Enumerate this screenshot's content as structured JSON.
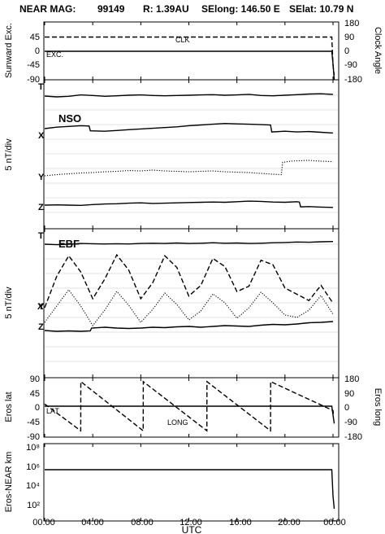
{
  "title": {
    "mission": "NEAR MAG:",
    "doy": "99149",
    "range": "R: 1.39AU",
    "selong": "SElong:  146.50 E",
    "selat": "SElat:   10.79 N"
  },
  "chart_data": [
    {
      "id": "panel1",
      "type": "line",
      "ylabel_left": "Sunward Exc.",
      "ylabel_right": "Clock Angle",
      "yticks_left": [
        "45",
        "0",
        "-45",
        "-90"
      ],
      "yticks_right": [
        "180",
        "90",
        "0",
        "-90",
        "-180"
      ],
      "ylim_left": [
        -90,
        90
      ],
      "ylim_right": [
        -180,
        180
      ],
      "annotations": [
        "CLK",
        "EXC."
      ],
      "series": [
        {
          "name": "CLK",
          "style": "dashed",
          "axis": "right",
          "x": [
            0,
            23.9,
            24.0,
            24.1
          ],
          "y": [
            90,
            90,
            -90,
            -150
          ]
        },
        {
          "name": "EXC.",
          "style": "solid",
          "axis": "left",
          "x": [
            0,
            23.9,
            24.0,
            24.1
          ],
          "y": [
            0,
            0,
            -40,
            -90
          ]
        }
      ]
    },
    {
      "id": "panel2",
      "type": "line",
      "ylabel_left": "5 nT/div",
      "panel_label": "NSO",
      "trace_labels": [
        "T",
        "X",
        "Y",
        "Z"
      ],
      "series": [
        {
          "name": "T",
          "style": "solid",
          "x": [
            0,
            1,
            2,
            3,
            4,
            5,
            6,
            7,
            8,
            9,
            10,
            11,
            12,
            13,
            14,
            15,
            16,
            17,
            18,
            19,
            20,
            21,
            22,
            23,
            24
          ],
          "y": [
            0,
            -0.3,
            -0.1,
            0.4,
            0.2,
            -0.1,
            0.1,
            0.3,
            0.4,
            0.2,
            0.1,
            0.2,
            0.3,
            0.4,
            0.5,
            0.3,
            0.4,
            0.6,
            0.2,
            0.1,
            0.3,
            0.5,
            0.7,
            0.8,
            0.6
          ]
        },
        {
          "name": "X",
          "style": "solid",
          "x": [
            0,
            1,
            2,
            3,
            3.7,
            3.8,
            5,
            6,
            7,
            8,
            9,
            10,
            11,
            12,
            13,
            14,
            15,
            16,
            17,
            18,
            18.8,
            18.9,
            20,
            21,
            22,
            23,
            24
          ],
          "y": [
            0,
            0.4,
            0.6,
            0.8,
            0.7,
            -0.6,
            -0.7,
            -0.5,
            -0.3,
            -0.1,
            0.1,
            0.3,
            0.5,
            0.8,
            1.0,
            1.2,
            1.4,
            1.3,
            1.2,
            1.1,
            1.0,
            -0.9,
            -0.7,
            -0.9,
            -0.8,
            -1.0,
            -1.2
          ]
        },
        {
          "name": "Y",
          "style": "dotted",
          "x": [
            0,
            1,
            2,
            3,
            4,
            5,
            6,
            7,
            8,
            9,
            10,
            11,
            12,
            13,
            14,
            15,
            16,
            17,
            18,
            19,
            19.7,
            19.8,
            20.5,
            21,
            22,
            23,
            24
          ],
          "y": [
            0,
            0.3,
            0.5,
            0.7,
            0.8,
            1.0,
            1.1,
            1.3,
            1.2,
            1.4,
            1.2,
            1.1,
            1.0,
            1.1,
            1.2,
            1.0,
            0.9,
            0.8,
            0.6,
            0.4,
            0.3,
            3.3,
            3.6,
            3.7,
            3.8,
            3.6,
            3.5
          ]
        },
        {
          "name": "Z",
          "style": "solid",
          "x": [
            0,
            1,
            2,
            3,
            4,
            5,
            6,
            7,
            8,
            9,
            10,
            11,
            12,
            13,
            14,
            15,
            16,
            17,
            18,
            19,
            20,
            21,
            21.2,
            21.3,
            22,
            23,
            24
          ],
          "y": [
            0,
            0.1,
            0.0,
            -0.1,
            0.2,
            0.4,
            0.5,
            0.7,
            0.8,
            0.6,
            0.7,
            0.8,
            0.9,
            1.0,
            1.1,
            1.0,
            1.2,
            1.4,
            1.3,
            1.1,
            1.0,
            1.2,
            1.1,
            -0.6,
            -0.5,
            -0.7,
            -0.8
          ]
        }
      ]
    },
    {
      "id": "panel3",
      "type": "line",
      "ylabel_left": "5 nT/div",
      "panel_label": "EBF",
      "trace_labels": [
        "T",
        "X",
        "Y",
        "Z"
      ],
      "series": [
        {
          "name": "T",
          "style": "solid",
          "x": [
            0,
            1,
            2,
            3,
            4,
            5,
            6,
            7,
            8,
            9,
            10,
            11,
            12,
            13,
            14,
            15,
            16,
            17,
            18,
            19,
            20,
            21,
            22,
            23,
            24
          ],
          "y": [
            0,
            -0.2,
            0.0,
            0.3,
            0.2,
            0.1,
            0.2,
            0.1,
            0.3,
            0.4,
            0.3,
            0.5,
            0.3,
            0.4,
            0.6,
            0.4,
            0.5,
            0.3,
            0.4,
            0.6,
            0.7,
            0.9,
            0.8,
            1.0,
            1.1
          ]
        },
        {
          "name": "X",
          "style": "dashed",
          "x": [
            0,
            1,
            2,
            3,
            4,
            5,
            6,
            7,
            8,
            9,
            10,
            11,
            12,
            13,
            14,
            15,
            16,
            17,
            18,
            19,
            20,
            21,
            22,
            23,
            24
          ],
          "y": [
            0,
            3.5,
            5.8,
            4.0,
            1.0,
            3.2,
            5.9,
            4.2,
            1.0,
            2.8,
            5.8,
            4.5,
            1.3,
            2.5,
            5.5,
            4.6,
            1.8,
            2.4,
            5.3,
            4.8,
            2.2,
            1.5,
            0.8,
            2.5,
            0.5
          ]
        },
        {
          "name": "Y",
          "style": "dotted",
          "x": [
            0,
            1,
            2,
            3,
            4,
            5,
            6,
            7,
            8,
            9,
            10,
            11,
            12,
            13,
            14,
            15,
            16,
            17,
            18,
            19,
            20,
            21,
            22,
            23,
            24
          ],
          "y": [
            0,
            2.0,
            4.0,
            2.0,
            -0.4,
            1.5,
            3.8,
            2.1,
            0.0,
            1.6,
            3.6,
            2.2,
            0.3,
            1.4,
            3.5,
            2.4,
            0.5,
            1.8,
            3.7,
            2.4,
            0.9,
            0.6,
            1.5,
            3.3,
            1.0
          ]
        },
        {
          "name": "Z",
          "style": "solid",
          "x": [
            0,
            1,
            2,
            3,
            3.8,
            3.9,
            5,
            6,
            7,
            8,
            9,
            10,
            11,
            12,
            13,
            14,
            15,
            16,
            17,
            18,
            19,
            20,
            21,
            22,
            23,
            24
          ],
          "y": [
            0,
            -0.2,
            -0.1,
            -0.2,
            -0.1,
            0.6,
            0.8,
            0.6,
            0.5,
            0.6,
            0.8,
            0.7,
            0.9,
            1.0,
            0.8,
            1.0,
            1.2,
            1.1,
            1.0,
            1.3,
            1.5,
            1.4,
            1.6,
            1.9,
            2.0,
            2.2
          ]
        }
      ]
    },
    {
      "id": "panel4",
      "type": "line",
      "ylabel_left": "Eros lat",
      "ylabel_right": "Eros long",
      "yticks_left": [
        "90",
        "45",
        "0",
        "-45",
        "-90"
      ],
      "yticks_right": [
        "180",
        "90",
        "0",
        "-90",
        "-180"
      ],
      "ylim_left": [
        -90,
        90
      ],
      "ylim_right": [
        -180,
        180
      ],
      "annotations": [
        "LAT",
        "LONG"
      ],
      "series": [
        {
          "name": "LAT",
          "style": "solid",
          "axis": "left",
          "x": [
            0,
            23.9,
            24.0,
            24.1
          ],
          "y": [
            0,
            0,
            -30,
            -60
          ]
        },
        {
          "name": "LONG",
          "style": "dashed",
          "axis": "right",
          "x": [
            0,
            3.0,
            3.01,
            8.2,
            8.21,
            13.5,
            13.51,
            18.8,
            18.81,
            24.0,
            24.05
          ],
          "y": [
            15,
            -170,
            170,
            -170,
            170,
            -170,
            170,
            -170,
            170,
            -30,
            -70
          ]
        }
      ]
    },
    {
      "id": "panel5",
      "type": "line",
      "ylabel_left": "Eros-NEAR km",
      "yscale": "log",
      "ylim": [
        10,
        100000000
      ],
      "yticks_left": [
        "10⁸",
        "10⁶",
        "10⁴",
        "10²"
      ],
      "series": [
        {
          "name": "range",
          "style": "solid",
          "x": [
            0,
            23.9,
            24.0,
            24.1
          ],
          "y": [
            1000000,
            1000000,
            2000,
            100
          ]
        }
      ]
    }
  ],
  "xaxis": {
    "ticks": [
      "00:00",
      "04:00",
      "08:00",
      "12:00",
      "16:00",
      "20:00",
      "00:00"
    ],
    "label": "UTC"
  }
}
